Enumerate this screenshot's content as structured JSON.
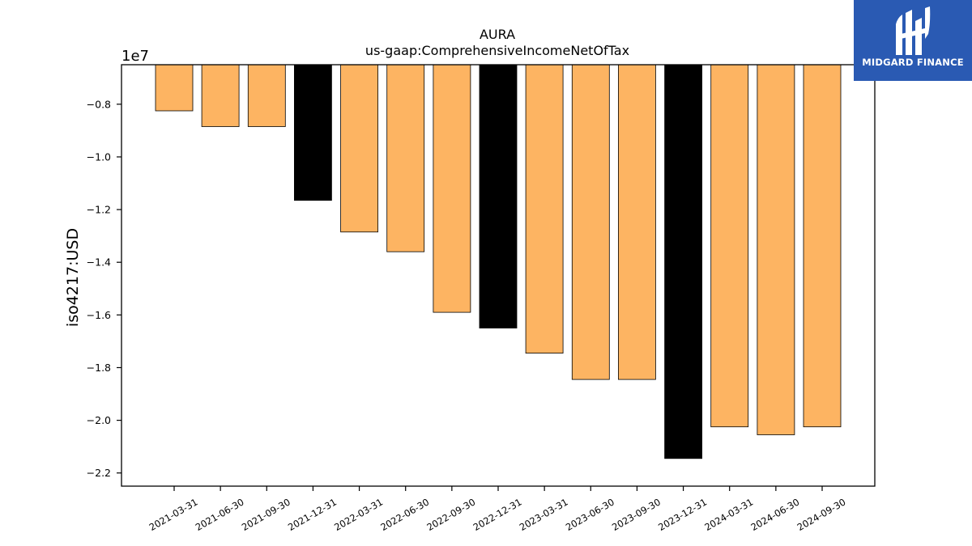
{
  "chart_data": {
    "type": "bar",
    "title": "AURA",
    "subtitle": "us-gaap:ComprehensiveIncomeNetOfTax",
    "ylabel": "iso4217:USD",
    "xlabel": "",
    "offset_label": "1e7",
    "categories": [
      "2021-03-31",
      "2021-06-30",
      "2021-09-30",
      "2021-12-31",
      "2022-03-31",
      "2022-06-30",
      "2022-09-30",
      "2022-12-31",
      "2023-03-31",
      "2023-06-30",
      "2023-09-30",
      "2023-12-31",
      "2024-03-31",
      "2024-06-30",
      "2024-09-30"
    ],
    "values": [
      -8250000,
      -8850000,
      -8850000,
      -11650000,
      -12850000,
      -13600000,
      -15900000,
      -16500000,
      -17450000,
      -18450000,
      -18450000,
      -21450000,
      -20250000,
      -20550000,
      -20250000
    ],
    "bar_colors": [
      "#fdb462",
      "#fdb462",
      "#fdb462",
      "#000000",
      "#fdb462",
      "#fdb462",
      "#fdb462",
      "#000000",
      "#fdb462",
      "#fdb462",
      "#fdb462",
      "#000000",
      "#fdb462",
      "#fdb462",
      "#fdb462"
    ],
    "ylim": [
      -22500000,
      -6500000
    ],
    "yticks": [
      -8000000,
      -10000000,
      -12000000,
      -14000000,
      -16000000,
      -18000000,
      -20000000,
      -22000000
    ],
    "ytick_labels": [
      "−0.8",
      "−1.0",
      "−1.2",
      "−1.4",
      "−1.6",
      "−1.8",
      "−2.0",
      "−2.2"
    ],
    "grid": false,
    "legend": "none"
  },
  "logo": {
    "text": "MIDGARD FINANCE",
    "color": "#2a5ab3"
  }
}
